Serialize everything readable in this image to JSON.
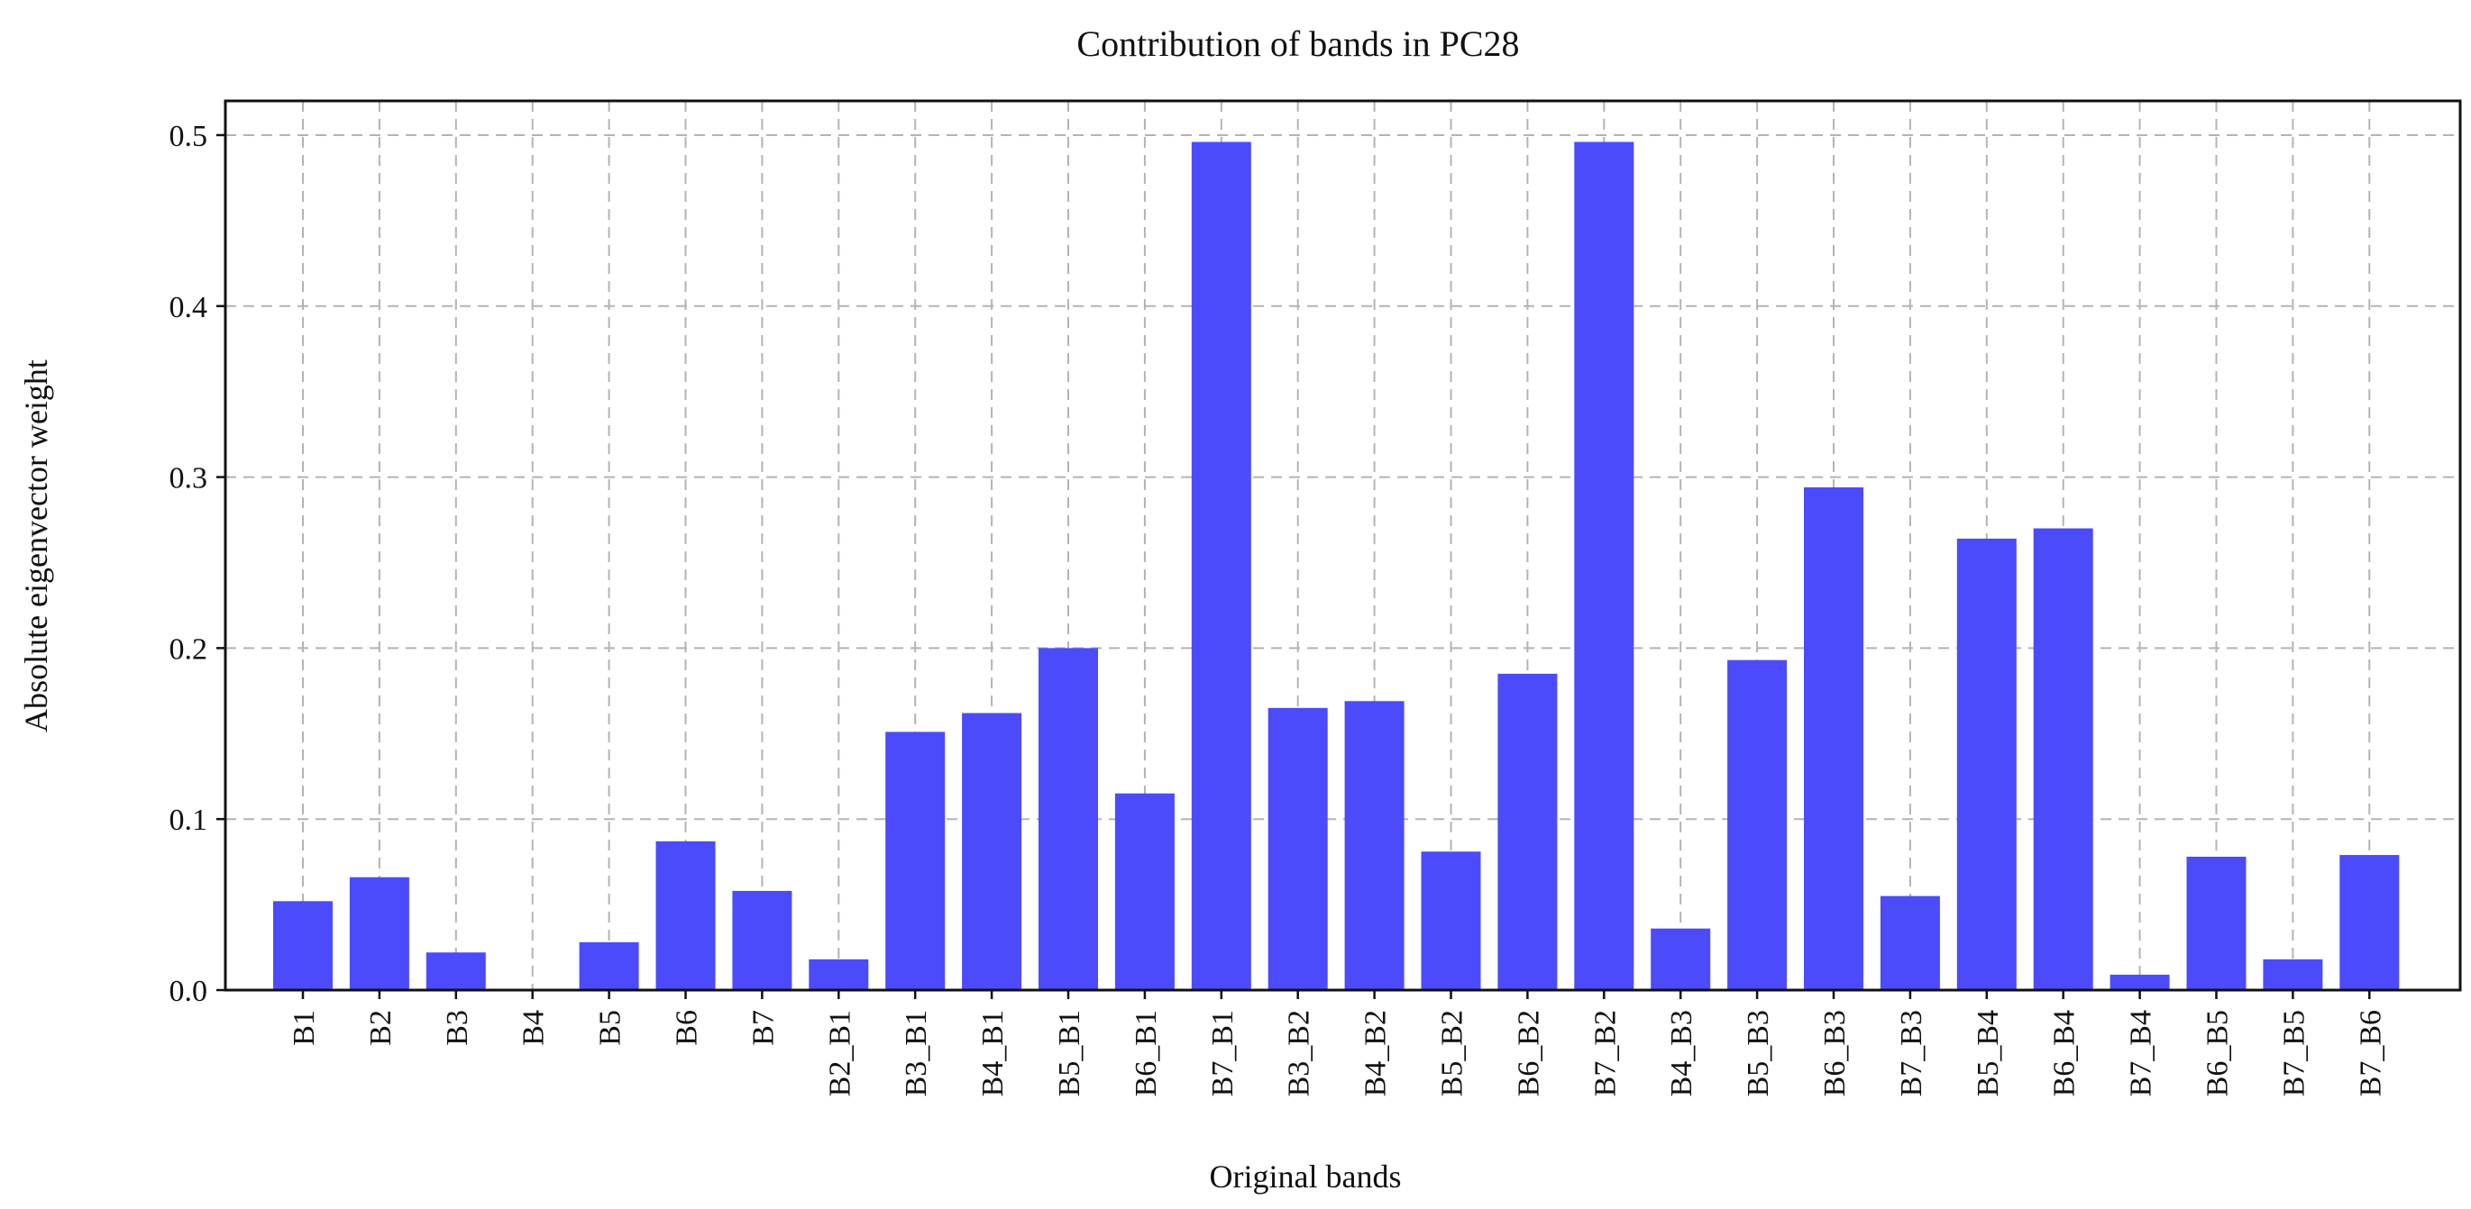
{
  "chart_data": {
    "type": "bar",
    "title": "Contribution of bands in PC28",
    "xlabel": "Original bands",
    "ylabel": "Absolute eigenvector weight",
    "ylim": [
      0,
      0.52
    ],
    "yticks": [
      "0.0",
      "0.1",
      "0.2",
      "0.3",
      "0.4",
      "0.5"
    ],
    "grid": true,
    "bar_color": "#4b4bfb",
    "categories": [
      "B1",
      "B2",
      "B3",
      "B4",
      "B5",
      "B6",
      "B7",
      "B2_B1",
      "B3_B1",
      "B4_B1",
      "B5_B1",
      "B6_B1",
      "B7_B1",
      "B3_B2",
      "B4_B2",
      "B5_B2",
      "B6_B2",
      "B7_B2",
      "B4_B3",
      "B5_B3",
      "B6_B3",
      "B7_B3",
      "B5_B4",
      "B6_B4",
      "B7_B4",
      "B6_B5",
      "B7_B5",
      "B7_B6"
    ],
    "values": [
      0.052,
      0.066,
      0.022,
      0.0,
      0.028,
      0.087,
      0.058,
      0.018,
      0.151,
      0.162,
      0.2,
      0.115,
      0.496,
      0.165,
      0.169,
      0.081,
      0.185,
      0.496,
      0.036,
      0.193,
      0.294,
      0.055,
      0.264,
      0.27,
      0.009,
      0.078,
      0.018,
      0.079
    ]
  }
}
